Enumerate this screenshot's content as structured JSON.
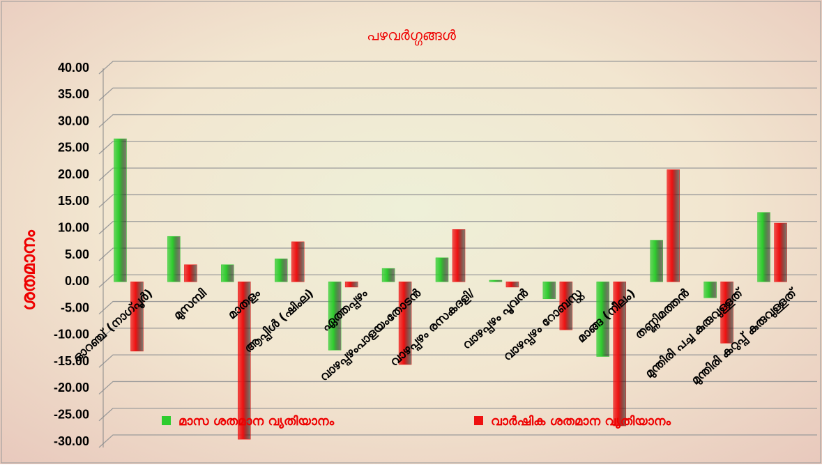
{
  "chart_data": {
    "type": "bar",
    "title": "പഴവർഗ്ഗങ്ങൾ",
    "y_label": "ശതമാനം",
    "categories": [
      "ഓറഞ്ച് (നാഗ്പൂർ)",
      "മുസമ്പി",
      "മാതളം",
      "ആപ്പിൾ (ഷിംല)",
      "ഏത്തപ്പഴം",
      "വാഴപ്പഴംപാളയംതോടൻ",
      "വാഴപ്പഴം രസകദളി/",
      "വാഴപ്പഴം പൂവൻ",
      "വാഴപ്പഴം റോബസ്റ്റ",
      "മാങ്ങ (നീലം)",
      "തണ്ണിമത്തൻ",
      "മുന്തിരി പച്ച കുരുവുള്ളത്",
      "മുന്തിരി കറുപ്പ് കുരുവുള്ളത്"
    ],
    "series": [
      {
        "name": "മാസ ശതമാന വ്യതിയാനം",
        "color": "#2ecc2e",
        "values": [
          26.8,
          8.5,
          3.2,
          4.3,
          -12.8,
          2.5,
          4.5,
          0.3,
          -3.2,
          -14,
          7.8,
          -3,
          13
        ]
      },
      {
        "name": "വാർഷിക ശതമാന വ്യതിയാനം",
        "color": "#ee1111",
        "values": [
          -13,
          3.2,
          -29.5,
          7.5,
          -1,
          -15.5,
          9.8,
          -1,
          -9,
          -27,
          21,
          -11.5,
          11
        ]
      }
    ],
    "ylim": [
      -30,
      40
    ],
    "yticks": [
      {
        "value": -30,
        "label": "-30.00"
      },
      {
        "value": -25,
        "label": "-25.00"
      },
      {
        "value": -20,
        "label": "-20.00"
      },
      {
        "value": -15,
        "label": "-15.00"
      },
      {
        "value": -10,
        "label": "-10.00"
      },
      {
        "value": -5,
        "label": "-5.00"
      },
      {
        "value": 0,
        "label": "0.00"
      },
      {
        "value": 5,
        "label": "5.00"
      },
      {
        "value": 10,
        "label": "10.00"
      },
      {
        "value": 15,
        "label": "15.00"
      },
      {
        "value": 20,
        "label": "20.00"
      },
      {
        "value": 25,
        "label": "25.00"
      },
      {
        "value": 30,
        "label": "30.00"
      },
      {
        "value": 35,
        "label": "35.00"
      },
      {
        "value": 40,
        "label": "40.00"
      }
    ],
    "grid": true
  }
}
